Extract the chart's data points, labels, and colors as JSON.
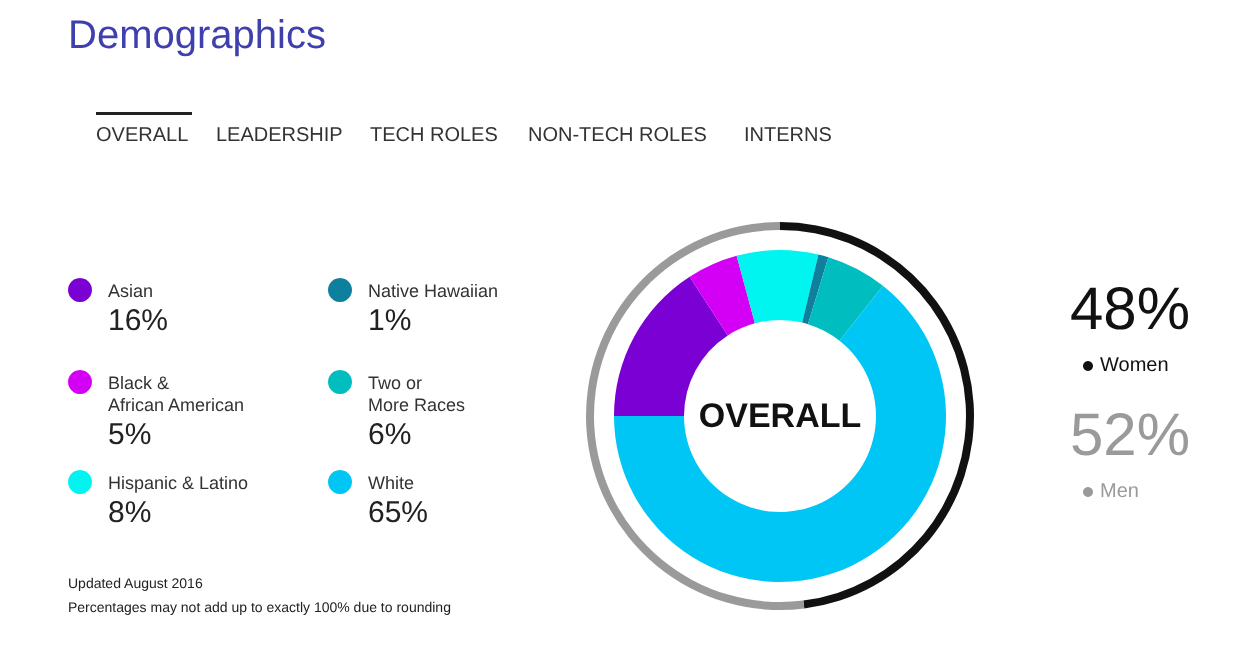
{
  "chart_data": [
    {
      "type": "donut",
      "title": "Demographics",
      "categories": [
        "Asian",
        "Black &\nAfrican American",
        "Hispanic & Latino",
        "Native Hawaiian",
        "Two or\nMore Races",
        "White"
      ],
      "values": [
        16,
        5,
        8,
        1,
        6,
        65
      ],
      "value_labels": [
        "16%",
        "5%",
        "8%",
        "1%",
        "6%",
        "65%"
      ],
      "colors": [
        "#7a00d4",
        "#d400f5",
        "#00f5f0",
        "#0e7f9c",
        "#00bdbf",
        "#00c6f5"
      ],
      "legend": "left",
      "annotations": [
        "OVERALL",
        "LEADERSHIP",
        "TECH ROLES",
        "NON-TECH ROLES",
        "INTERNS",
        "OVERALL",
        "Updated August 2016",
        "Percentages may not add up to exactly 100% due to rounding"
      ]
    },
    {
      "type": "donut",
      "categories": [
        "Women",
        "Men"
      ],
      "values": [
        48,
        52
      ],
      "value_labels": [
        "48%",
        "52%"
      ],
      "colors": [
        "#111111",
        "#9a9a9a"
      ],
      "legend": "right"
    }
  ]
}
